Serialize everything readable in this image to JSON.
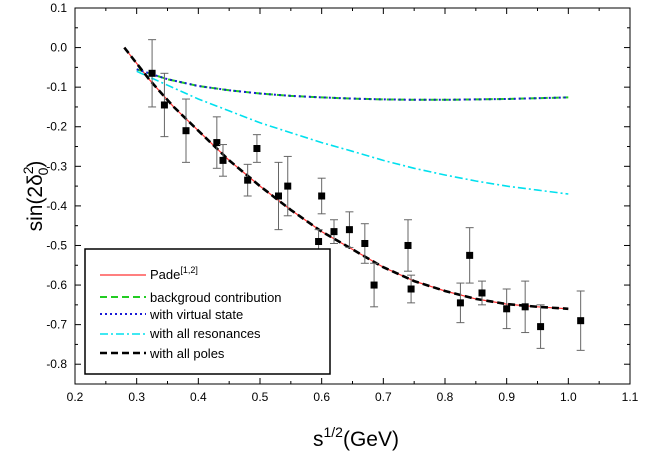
{
  "chart_data": {
    "type": "line",
    "xlim": [
      0.2,
      1.1
    ],
    "ylim": [
      -0.85,
      0.1
    ],
    "x_ticks": [
      "0.2",
      "0.3",
      "0.4",
      "0.5",
      "0.6",
      "0.7",
      "0.8",
      "0.9",
      "1.0",
      "1.1"
    ],
    "y_ticks": [
      "0.1",
      "0.0",
      "-0.1",
      "-0.2",
      "-0.3",
      "-0.4",
      "-0.5",
      "-0.6",
      "-0.7",
      "-0.8"
    ],
    "x_tick_values": [
      0.2,
      0.3,
      0.4,
      0.5,
      0.6,
      0.7,
      0.8,
      0.9,
      1.0,
      1.1
    ],
    "y_tick_values": [
      0.1,
      0.0,
      -0.1,
      -0.2,
      -0.3,
      -0.4,
      -0.5,
      -0.6,
      -0.7,
      -0.8
    ],
    "xlabel": {
      "base": "s",
      "sup": "1/2",
      "tail": "(GeV)"
    },
    "ylabel": {
      "base": "sin(2δ",
      "sup": "2",
      "sub": "0",
      "tail": ")"
    },
    "legend_position": "bottom-left",
    "series": [
      {
        "name": "Pade",
        "sup": "[1,2]",
        "color": "#ff3333",
        "dash": "",
        "width": 1.2,
        "x": [
          0.28,
          0.3,
          0.32,
          0.34,
          0.36,
          0.38,
          0.4,
          0.45,
          0.5,
          0.55,
          0.6,
          0.65,
          0.7,
          0.75,
          0.8,
          0.85,
          0.9,
          0.95,
          1.0
        ],
        "y": [
          0.0,
          -0.04,
          -0.08,
          -0.115,
          -0.15,
          -0.18,
          -0.21,
          -0.285,
          -0.35,
          -0.41,
          -0.465,
          -0.51,
          -0.555,
          -0.59,
          -0.615,
          -0.635,
          -0.648,
          -0.655,
          -0.66
        ]
      },
      {
        "name": "backgroud contribution",
        "color": "#22cc22",
        "dash": "7,4",
        "width": 2,
        "x": [
          0.3,
          0.35,
          0.4,
          0.45,
          0.5,
          0.55,
          0.6,
          0.65,
          0.7,
          0.75,
          0.8,
          0.85,
          0.9,
          0.95,
          1.0
        ],
        "y": [
          -0.055,
          -0.08,
          -0.097,
          -0.108,
          -0.116,
          -0.122,
          -0.126,
          -0.129,
          -0.131,
          -0.132,
          -0.132,
          -0.131,
          -0.13,
          -0.128,
          -0.126
        ]
      },
      {
        "name": "with virtual state",
        "color": "#1a1ad6",
        "dash": "2,3",
        "width": 2,
        "x": [
          0.3,
          0.35,
          0.4,
          0.45,
          0.5,
          0.55,
          0.6,
          0.65,
          0.7,
          0.75,
          0.8,
          0.85,
          0.9,
          0.95,
          1.0
        ],
        "y": [
          -0.055,
          -0.08,
          -0.097,
          -0.108,
          -0.116,
          -0.122,
          -0.126,
          -0.129,
          -0.131,
          -0.132,
          -0.132,
          -0.131,
          -0.13,
          -0.128,
          -0.126
        ]
      },
      {
        "name": "with all resonances",
        "color": "#00e0ee",
        "dash": "8,3,2,3",
        "width": 1.6,
        "x": [
          0.3,
          0.35,
          0.4,
          0.45,
          0.5,
          0.55,
          0.6,
          0.65,
          0.7,
          0.75,
          0.8,
          0.85,
          0.9,
          0.95,
          1.0
        ],
        "y": [
          -0.06,
          -0.095,
          -0.13,
          -0.16,
          -0.19,
          -0.215,
          -0.24,
          -0.262,
          -0.285,
          -0.305,
          -0.322,
          -0.337,
          -0.35,
          -0.36,
          -0.37
        ]
      },
      {
        "name": "with all poles",
        "color": "#000000",
        "dash": "7,4",
        "width": 2.6,
        "x": [
          0.28,
          0.3,
          0.32,
          0.34,
          0.36,
          0.38,
          0.4,
          0.45,
          0.5,
          0.55,
          0.6,
          0.65,
          0.7,
          0.75,
          0.8,
          0.85,
          0.9,
          0.95,
          1.0
        ],
        "y": [
          0.0,
          -0.04,
          -0.08,
          -0.115,
          -0.15,
          -0.18,
          -0.21,
          -0.285,
          -0.35,
          -0.41,
          -0.465,
          -0.51,
          -0.555,
          -0.59,
          -0.615,
          -0.635,
          -0.648,
          -0.655,
          -0.66
        ]
      }
    ],
    "data_points": [
      {
        "x": 0.325,
        "y": -0.065,
        "err": 0.085
      },
      {
        "x": 0.345,
        "y": -0.145,
        "err": 0.08
      },
      {
        "x": 0.38,
        "y": -0.21,
        "err": 0.08
      },
      {
        "x": 0.43,
        "y": -0.24,
        "err": 0.065
      },
      {
        "x": 0.44,
        "y": -0.285,
        "err": 0.04
      },
      {
        "x": 0.48,
        "y": -0.335,
        "err": 0.04
      },
      {
        "x": 0.495,
        "y": -0.255,
        "err": 0.035
      },
      {
        "x": 0.53,
        "y": -0.375,
        "err": 0.085
      },
      {
        "x": 0.545,
        "y": -0.35,
        "err": 0.075
      },
      {
        "x": 0.595,
        "y": -0.49,
        "err": 0.03
      },
      {
        "x": 0.6,
        "y": -0.375,
        "err": 0.045
      },
      {
        "x": 0.62,
        "y": -0.465,
        "err": 0.03
      },
      {
        "x": 0.645,
        "y": -0.46,
        "err": 0.045
      },
      {
        "x": 0.67,
        "y": -0.495,
        "err": 0.05
      },
      {
        "x": 0.685,
        "y": -0.6,
        "err": 0.055
      },
      {
        "x": 0.74,
        "y": -0.5,
        "err": 0.065
      },
      {
        "x": 0.745,
        "y": -0.61,
        "err": 0.035
      },
      {
        "x": 0.825,
        "y": -0.645,
        "err": 0.05
      },
      {
        "x": 0.84,
        "y": -0.525,
        "err": 0.07
      },
      {
        "x": 0.86,
        "y": -0.62,
        "err": 0.03
      },
      {
        "x": 0.9,
        "y": -0.66,
        "err": 0.05
      },
      {
        "x": 0.93,
        "y": -0.655,
        "err": 0.065
      },
      {
        "x": 0.955,
        "y": -0.705,
        "err": 0.055
      },
      {
        "x": 1.02,
        "y": -0.69,
        "err": 0.075
      }
    ]
  }
}
